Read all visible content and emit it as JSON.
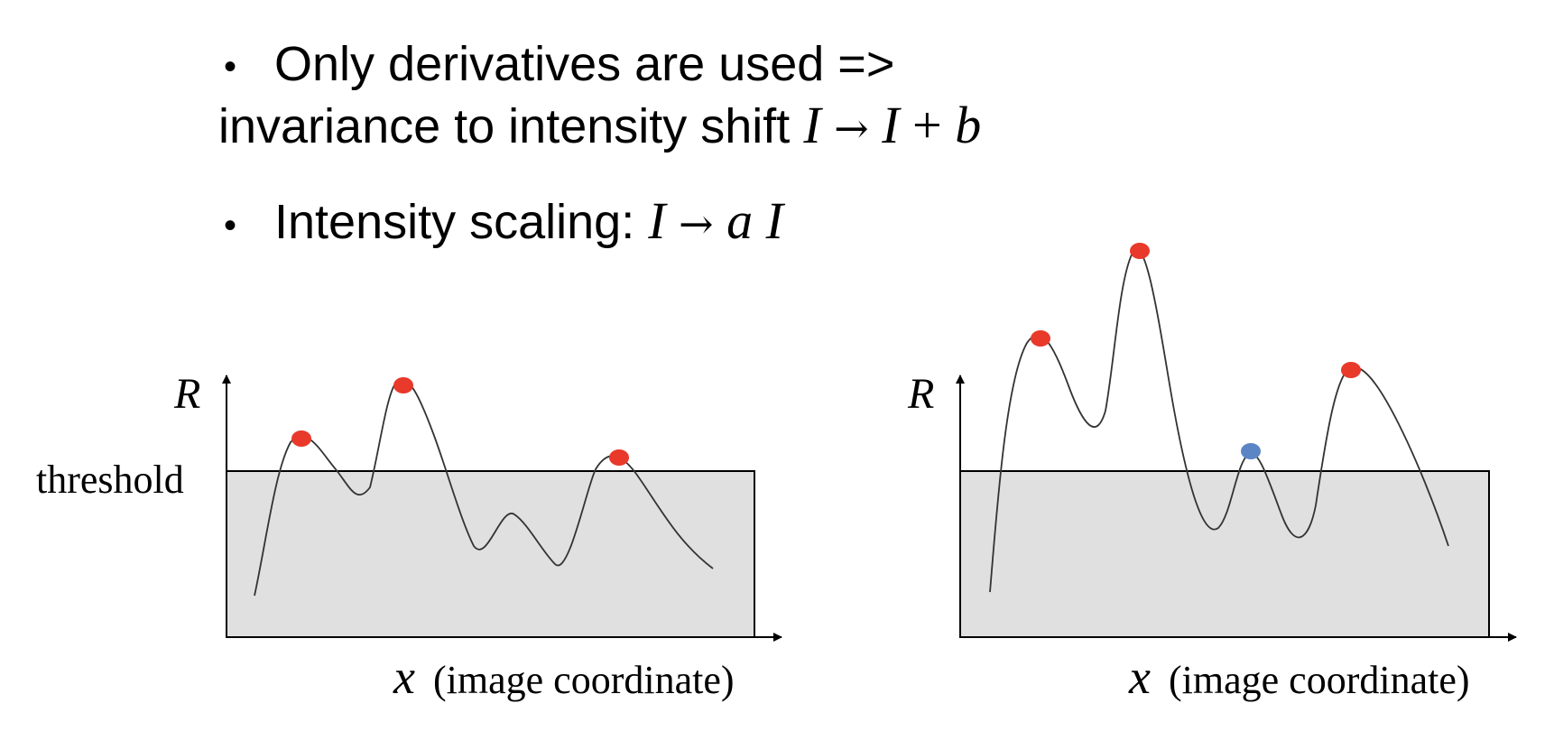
{
  "bullets": {
    "b1_line1": "Only derivatives are used =>",
    "b1_line2_text": "invariance to intensity shift",
    "b1_math": {
      "a": "I",
      "arrow": "→",
      "b": "I",
      "plus": "+",
      "c": "b"
    },
    "b2_text": "Intensity scaling:",
    "b2_math": {
      "a": "I",
      "arrow": "→",
      "b": "a",
      "c": "I"
    }
  },
  "left_plot": {
    "y_axis_label": "R",
    "threshold_label": "threshold",
    "x_axis_var": "x",
    "x_axis_desc": "(image coordinate)"
  },
  "right_plot": {
    "y_axis_label": "R",
    "x_axis_var": "x",
    "x_axis_desc": "(image coordinate)"
  },
  "colors": {
    "peak_above": "#e8392a",
    "peak_below": "#5b85c4",
    "shade": "#e0e0e0",
    "curve": "#333333"
  }
}
